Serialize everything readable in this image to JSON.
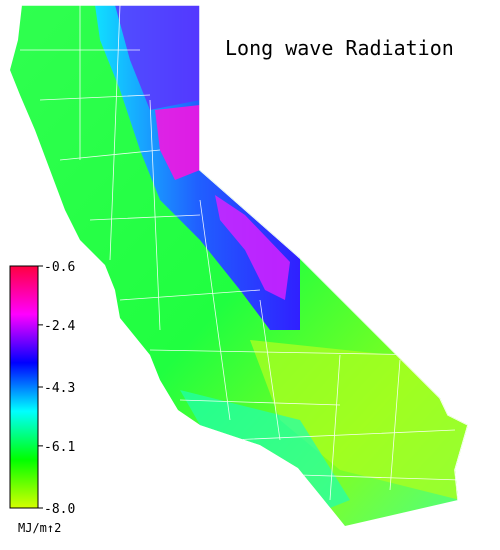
{
  "title": "Long wave Radiation",
  "colorbar": {
    "label": "MJ/m↑2",
    "lim": [
      -8,
      -0.6
    ],
    "ticks": [
      -0.6,
      -2.4,
      -4.3,
      -6.1,
      {
        "value": -8,
        "label": "-8.0"
      }
    ],
    "colors": [
      "#d4ff00",
      "#00ff00",
      "#00ffff",
      "#0000ff",
      "#ff00ff",
      "#ff0040"
    ]
  }
}
